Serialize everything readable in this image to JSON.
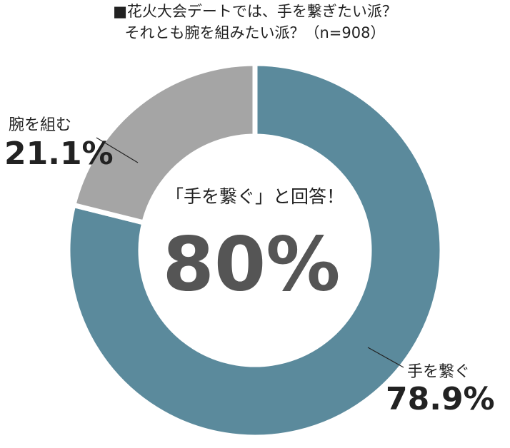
{
  "chart_data": {
    "type": "donut",
    "title": "■花火大会デートでは、手を繋ぎたい派？",
    "subtitle": "それとも腕を組みたい派？（n=908）",
    "categories": [
      "手を繋ぐ",
      "腕を組む"
    ],
    "values": [
      78.9,
      21.1
    ],
    "value_labels": [
      "78.9%",
      "21.1%"
    ],
    "colors": [
      "#5b8a9c",
      "#a5a5a5"
    ],
    "center_caption": "「手を繋ぐ」と回答！",
    "center_value": "80%"
  }
}
